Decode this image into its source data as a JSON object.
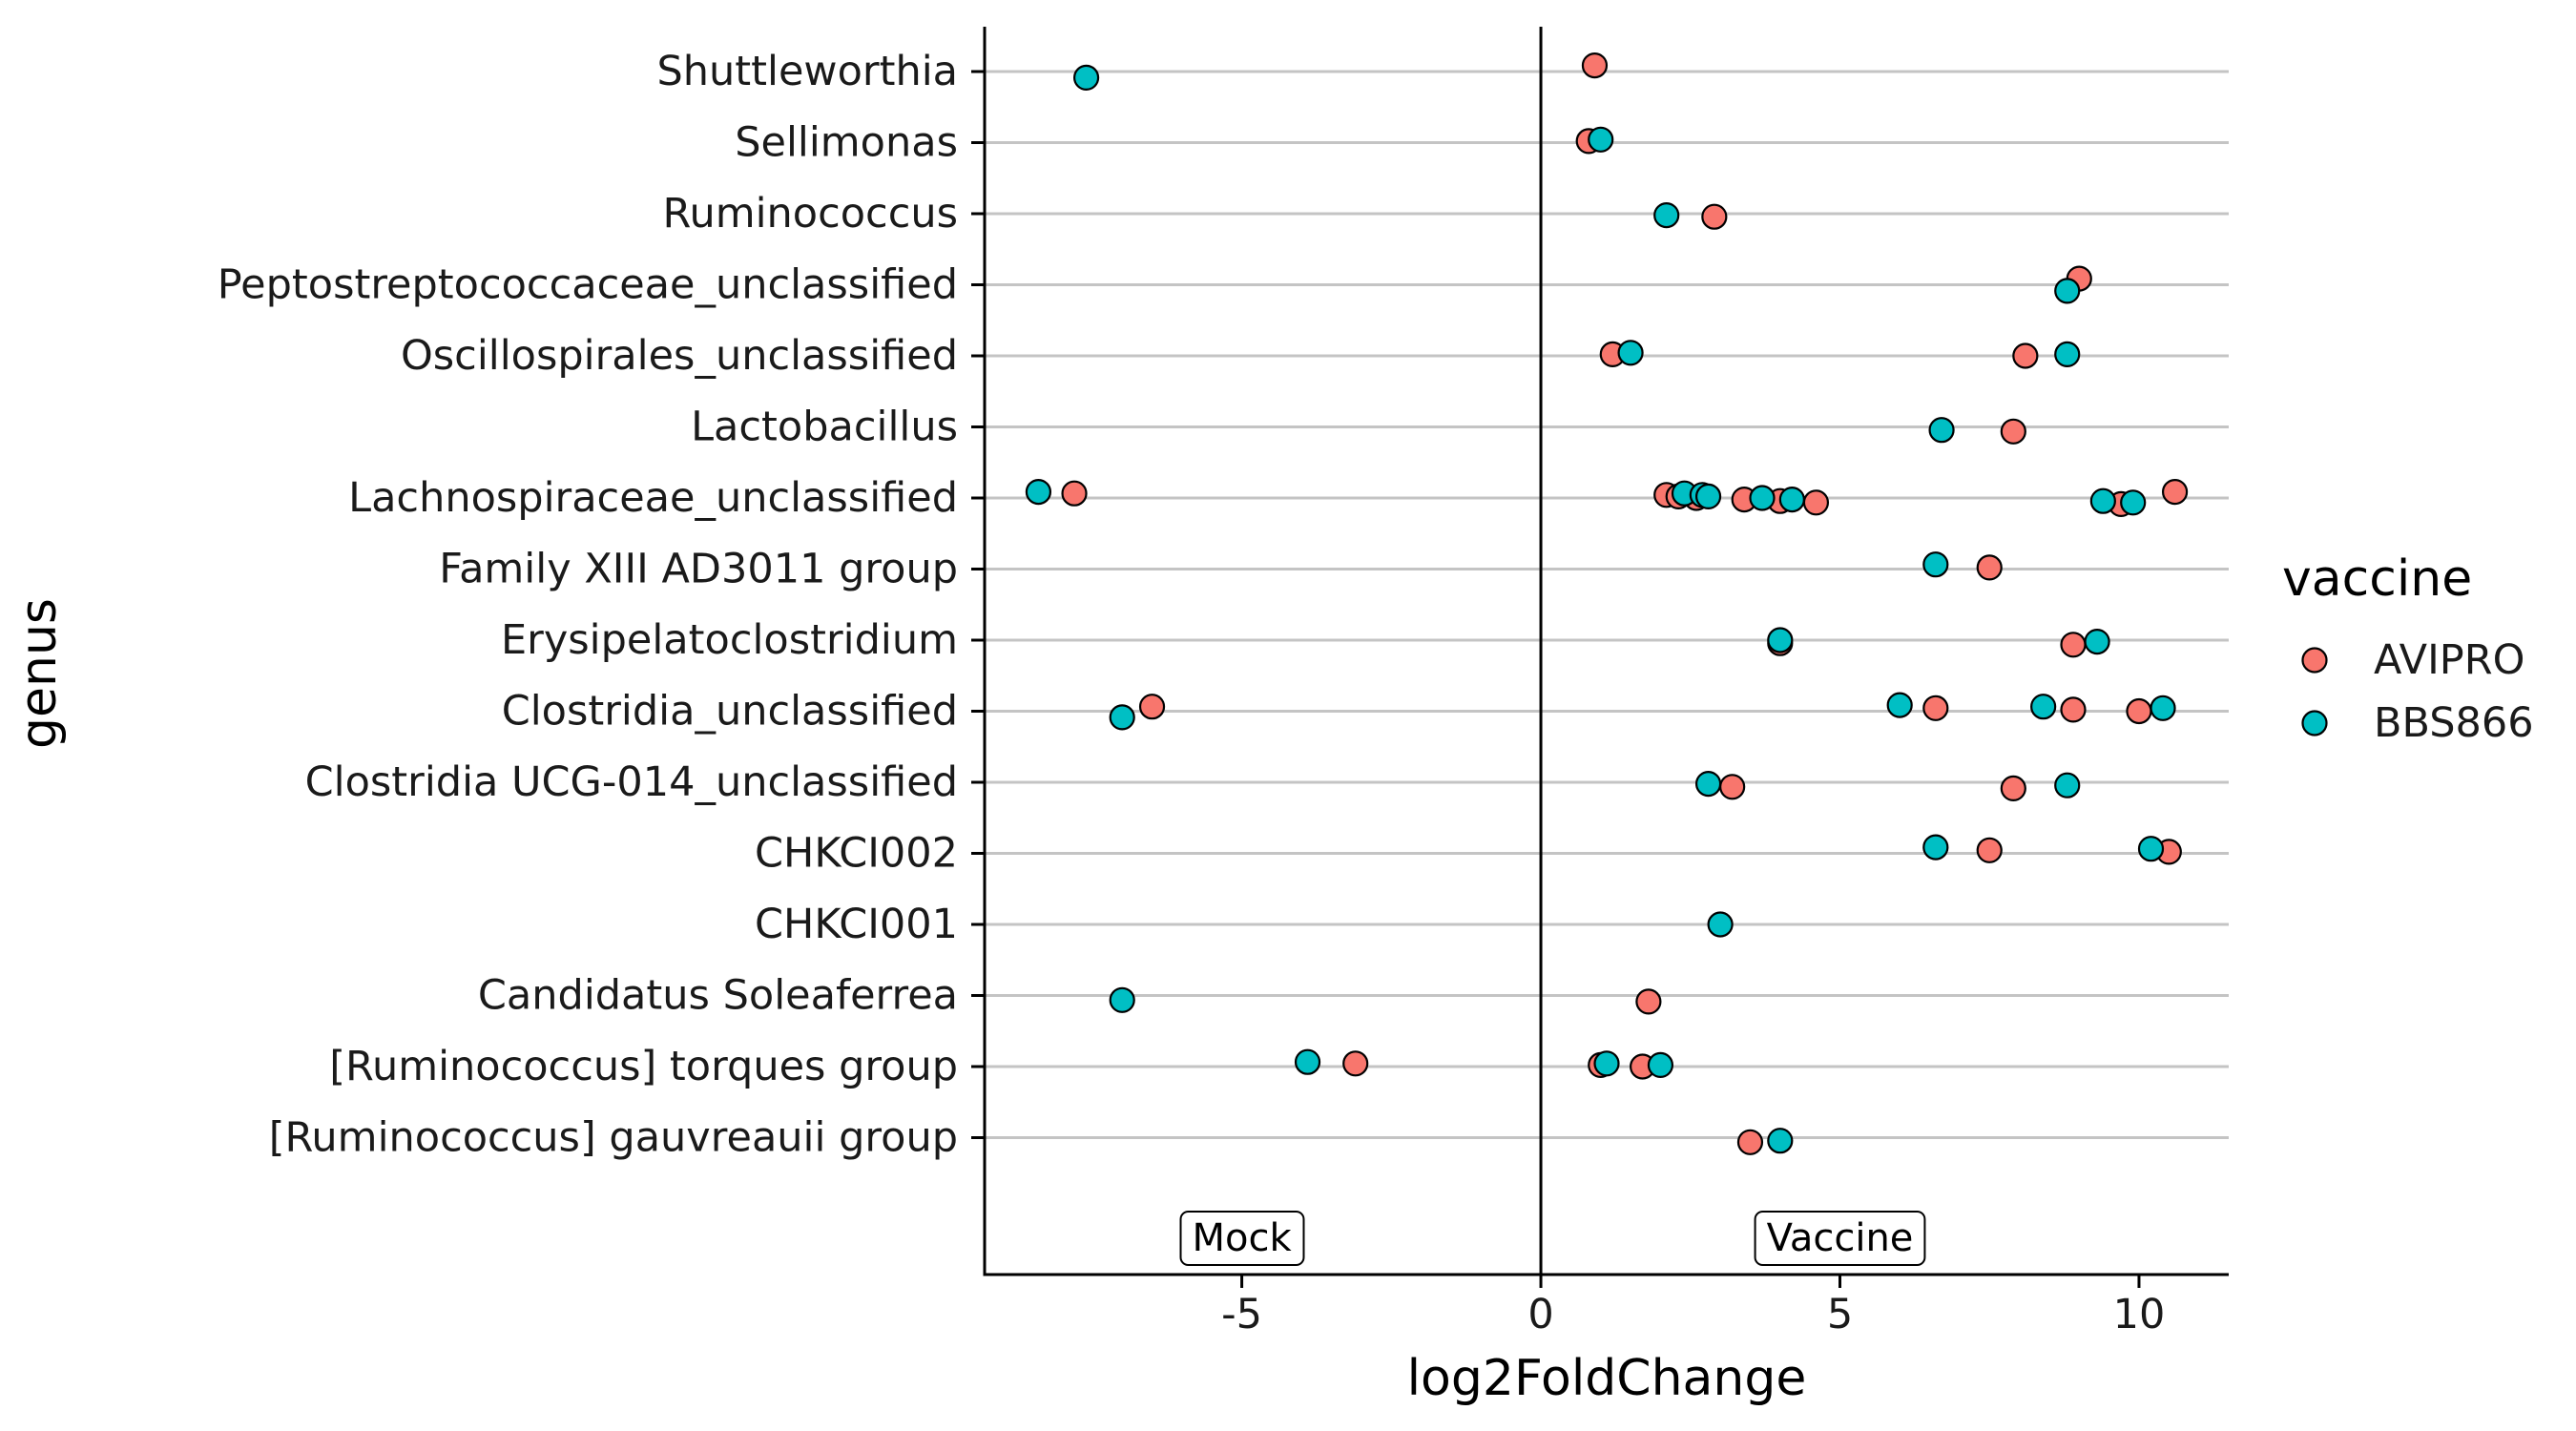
{
  "chart_data": {
    "type": "scatter",
    "title": "",
    "xlabel": "log2FoldChange",
    "ylabel": "genus",
    "xlim": [
      -9.3,
      11.5
    ],
    "xticks": [
      -5,
      0,
      5,
      10
    ],
    "xtick_labels": [
      "-5",
      "0",
      "5",
      "10"
    ],
    "grid": "horizontal lines per genus",
    "reference_line_x": 0,
    "legend": {
      "title": "vaccine",
      "placement": "right",
      "entries": [
        {
          "name": "AVIPRO",
          "color": "#F8766D"
        },
        {
          "name": "BBS866",
          "color": "#00BFC4"
        }
      ]
    },
    "annotations": [
      {
        "text": "Mock",
        "x": -5
      },
      {
        "text": "Vaccine",
        "x": 5
      }
    ],
    "genera": [
      "Shuttleworthia",
      "Sellimonas",
      "Ruminococcus",
      "Peptostreptococcaceae_unclassified",
      "Oscillospirales_unclassified",
      "Lactobacillus",
      "Lachnospiraceae_unclassified",
      "Family XIII AD3011 group",
      "Erysipelatoclostridium",
      "Clostridia_unclassified",
      "Clostridia UCG-014_unclassified",
      "CHKCI002",
      "CHKCI001",
      "Candidatus Soleaferrea",
      "[Ruminococcus] torques group",
      "[Ruminococcus] gauvreauii group"
    ],
    "series": [
      {
        "name": "AVIPRO",
        "color": "#F8766D",
        "points": [
          {
            "genus": "Shuttleworthia",
            "x": 0.9
          },
          {
            "genus": "Sellimonas",
            "x": 0.8
          },
          {
            "genus": "Ruminococcus",
            "x": 2.9
          },
          {
            "genus": "Peptostreptococcaceae_unclassified",
            "x": 9.0
          },
          {
            "genus": "Oscillospirales_unclassified",
            "x": 1.2
          },
          {
            "genus": "Oscillospirales_unclassified",
            "x": 8.1
          },
          {
            "genus": "Lactobacillus",
            "x": 7.9
          },
          {
            "genus": "Lachnospiraceae_unclassified",
            "x": -7.8
          },
          {
            "genus": "Lachnospiraceae_unclassified",
            "x": 2.1
          },
          {
            "genus": "Lachnospiraceae_unclassified",
            "x": 2.3
          },
          {
            "genus": "Lachnospiraceae_unclassified",
            "x": 2.6
          },
          {
            "genus": "Lachnospiraceae_unclassified",
            "x": 3.4
          },
          {
            "genus": "Lachnospiraceae_unclassified",
            "x": 4.0
          },
          {
            "genus": "Lachnospiraceae_unclassified",
            "x": 4.6
          },
          {
            "genus": "Lachnospiraceae_unclassified",
            "x": 9.7
          },
          {
            "genus": "Lachnospiraceae_unclassified",
            "x": 10.6
          },
          {
            "genus": "Family XIII AD3011 group",
            "x": 7.5
          },
          {
            "genus": "Erysipelatoclostridium",
            "x": 4.0
          },
          {
            "genus": "Erysipelatoclostridium",
            "x": 8.9
          },
          {
            "genus": "Clostridia_unclassified",
            "x": -6.5
          },
          {
            "genus": "Clostridia_unclassified",
            "x": 6.6
          },
          {
            "genus": "Clostridia_unclassified",
            "x": 8.9
          },
          {
            "genus": "Clostridia_unclassified",
            "x": 10.0
          },
          {
            "genus": "Clostridia UCG-014_unclassified",
            "x": 3.2
          },
          {
            "genus": "Clostridia UCG-014_unclassified",
            "x": 7.9
          },
          {
            "genus": "CHKCI002",
            "x": 7.5
          },
          {
            "genus": "CHKCI002",
            "x": 10.5
          },
          {
            "genus": "Candidatus Soleaferrea",
            "x": 1.8
          },
          {
            "genus": "[Ruminococcus] torques group",
            "x": -3.1
          },
          {
            "genus": "[Ruminococcus] torques group",
            "x": 1.0
          },
          {
            "genus": "[Ruminococcus] torques group",
            "x": 1.7
          },
          {
            "genus": "[Ruminococcus] gauvreauii group",
            "x": 3.5
          }
        ]
      },
      {
        "name": "BBS866",
        "color": "#00BFC4",
        "points": [
          {
            "genus": "Shuttleworthia",
            "x": -7.6
          },
          {
            "genus": "Sellimonas",
            "x": 1.0
          },
          {
            "genus": "Ruminococcus",
            "x": 2.1
          },
          {
            "genus": "Peptostreptococcaceae_unclassified",
            "x": 8.8
          },
          {
            "genus": "Oscillospirales_unclassified",
            "x": 1.5
          },
          {
            "genus": "Oscillospirales_unclassified",
            "x": 8.8
          },
          {
            "genus": "Lactobacillus",
            "x": 6.7
          },
          {
            "genus": "Lachnospiraceae_unclassified",
            "x": -8.4
          },
          {
            "genus": "Lachnospiraceae_unclassified",
            "x": 2.4
          },
          {
            "genus": "Lachnospiraceae_unclassified",
            "x": 2.7
          },
          {
            "genus": "Lachnospiraceae_unclassified",
            "x": 2.8
          },
          {
            "genus": "Lachnospiraceae_unclassified",
            "x": 3.7
          },
          {
            "genus": "Lachnospiraceae_unclassified",
            "x": 4.2
          },
          {
            "genus": "Lachnospiraceae_unclassified",
            "x": 9.4
          },
          {
            "genus": "Lachnospiraceae_unclassified",
            "x": 9.9
          },
          {
            "genus": "Family XIII AD3011 group",
            "x": 6.6
          },
          {
            "genus": "Erysipelatoclostridium",
            "x": 4.0
          },
          {
            "genus": "Erysipelatoclostridium",
            "x": 9.3
          },
          {
            "genus": "Clostridia_unclassified",
            "x": -7.0
          },
          {
            "genus": "Clostridia_unclassified",
            "x": 6.0
          },
          {
            "genus": "Clostridia_unclassified",
            "x": 8.4
          },
          {
            "genus": "Clostridia_unclassified",
            "x": 10.4
          },
          {
            "genus": "Clostridia UCG-014_unclassified",
            "x": 2.8
          },
          {
            "genus": "Clostridia UCG-014_unclassified",
            "x": 8.8
          },
          {
            "genus": "CHKCI002",
            "x": 6.6
          },
          {
            "genus": "CHKCI002",
            "x": 10.2
          },
          {
            "genus": "CHKCI001",
            "x": 3.0
          },
          {
            "genus": "Candidatus Soleaferrea",
            "x": -7.0
          },
          {
            "genus": "[Ruminococcus] torques group",
            "x": -3.9
          },
          {
            "genus": "[Ruminococcus] torques group",
            "x": 1.1
          },
          {
            "genus": "[Ruminococcus] torques group",
            "x": 2.0
          },
          {
            "genus": "[Ruminococcus] gauvreauii group",
            "x": 4.0
          }
        ]
      }
    ]
  }
}
